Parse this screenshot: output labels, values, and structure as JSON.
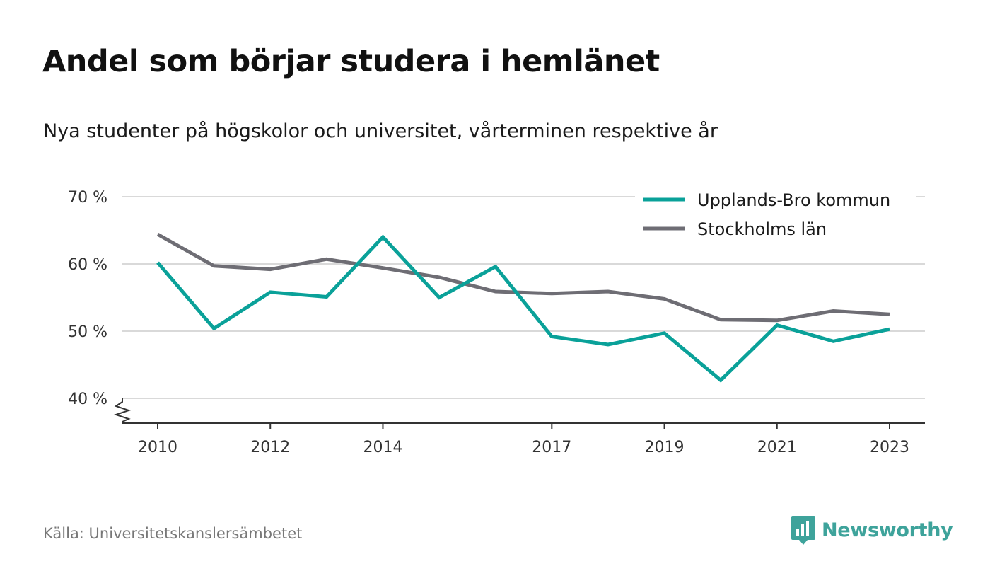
{
  "title": "Andel som börjar studera i hemlänet",
  "subtitle": "Nya studenter på högskolor och universitet, vårterminen respektive år",
  "source": "Källa: Universitetskanslersämbetet",
  "brand": "Newsworthy",
  "colors": {
    "accent": "#0aa199",
    "secondary": "#6e6d74",
    "grid": "#d9d9d9",
    "brand": "#3ea39b"
  },
  "chart_data": {
    "type": "line",
    "x": [
      2010,
      2011,
      2012,
      2013,
      2014,
      2015,
      2016,
      2017,
      2018,
      2019,
      2020,
      2021,
      2022,
      2023
    ],
    "x_tick_labels": [
      "2010",
      "2012",
      "2014",
      "2017",
      "2019",
      "2021",
      "2023"
    ],
    "y_ticks": [
      40,
      50,
      60,
      70
    ],
    "y_tick_labels": [
      "40 %",
      "50 %",
      "60 %",
      "70 %"
    ],
    "ylim": [
      36,
      70
    ],
    "series": [
      {
        "name": "Upplands-Bro kommun",
        "color": "#0aa199",
        "values": [
          60.2,
          50.4,
          55.8,
          55.1,
          64.0,
          55.0,
          59.6,
          49.2,
          48.0,
          49.7,
          42.7,
          50.9,
          48.5,
          50.3
        ]
      },
      {
        "name": "Stockholms län",
        "color": "#6e6d74",
        "values": [
          64.4,
          59.7,
          59.2,
          60.7,
          59.4,
          58.0,
          55.9,
          55.6,
          55.9,
          54.8,
          51.7,
          51.6,
          53.0,
          52.5
        ]
      }
    ],
    "grid": true,
    "legend": "top-right",
    "xlabel": "",
    "ylabel": ""
  }
}
